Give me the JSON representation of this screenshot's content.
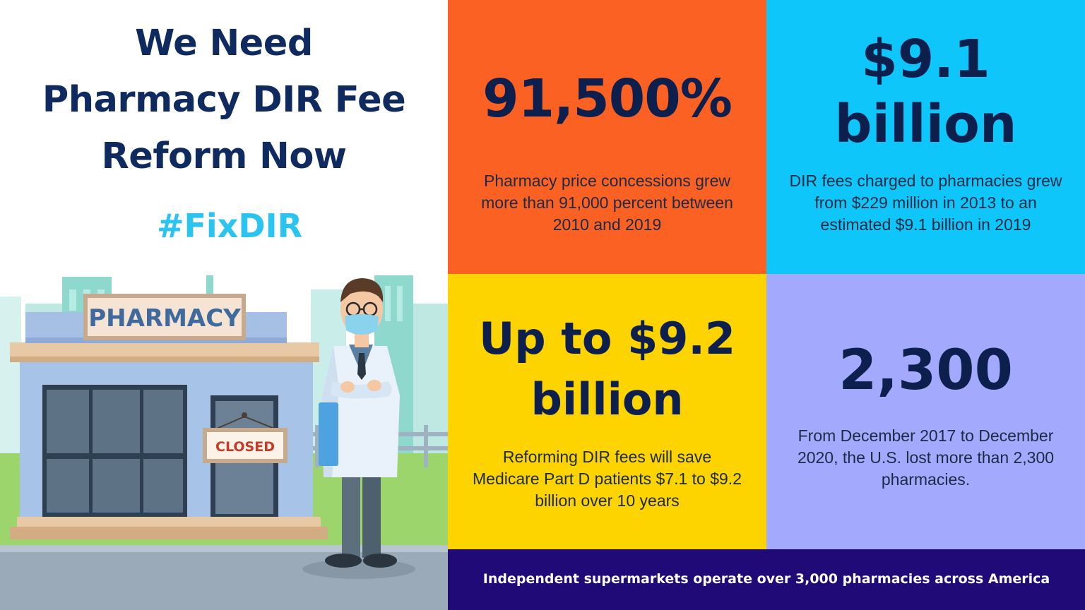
{
  "headline": {
    "line1": "We Need",
    "line2": "Pharmacy DIR Fee",
    "line3": "Reform Now"
  },
  "hashtag": "#FixDIR",
  "scene": {
    "store_sign": "PHARMACY",
    "closed_sign": "CLOSED"
  },
  "tiles": [
    {
      "stat": "91,500%",
      "description": "Pharmacy price concessions grew more than 91,000 percent between 2010 and 2019",
      "color": "#fc6124"
    },
    {
      "stat_line1": "$9.1",
      "stat_line2": "billion",
      "description": "DIR fees charged to pharmacies grew from $229 million in 2013 to an estimated $9.1 billion in 2019",
      "color": "#0fc6fa"
    },
    {
      "stat_line1": "Up to $9.2",
      "stat_line2": "billion",
      "description": "Reforming DIR fees will save Medicare Part D patients $7.1 to $9.2 billion over 10 years",
      "color": "#fdd400"
    },
    {
      "stat": "2,300",
      "description": "From December 2017 to December 2020, the U.S. lost more than 2,300 pharmacies.",
      "color": "#a3a9fc"
    }
  ],
  "footer": {
    "text": "Independent supermarkets operate over 3,000 pharmacies across America",
    "color": "#1f0a78"
  },
  "colors": {
    "headline": "#0e2a5e",
    "hashtag": "#2bc4f0"
  }
}
